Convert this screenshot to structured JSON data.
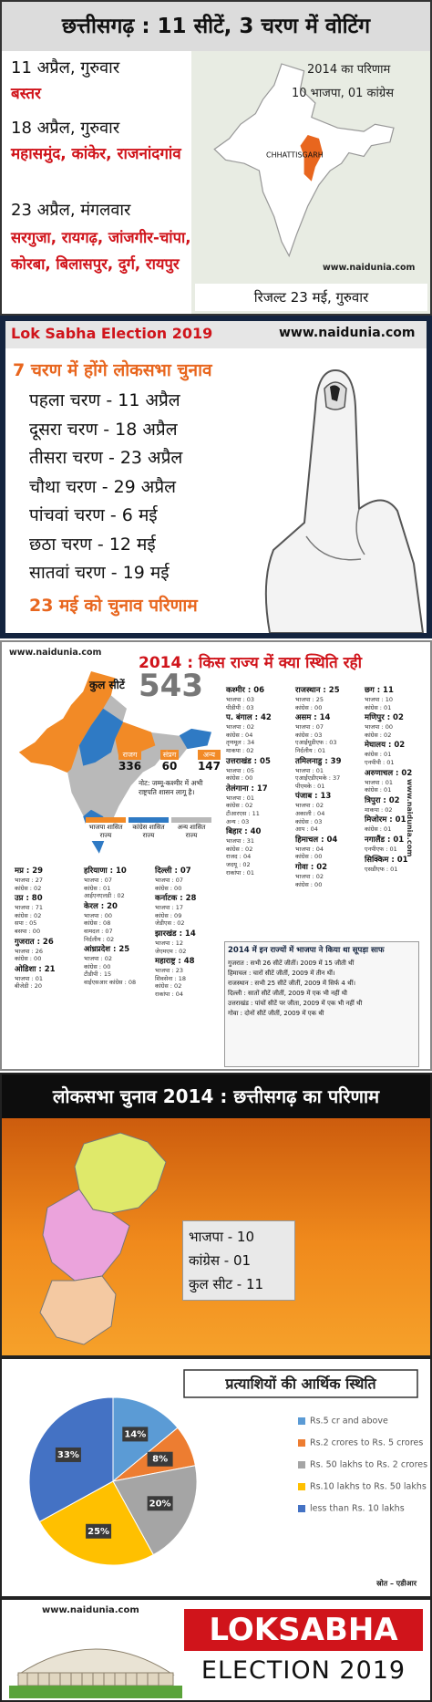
{
  "section1": {
    "title": "छत्तीसगढ़ : 11 सीटें, 3 चरण में वोटिंग",
    "phases": [
      {
        "date": "11 अप्रैल, गुरुवार",
        "seats": "बस्तर"
      },
      {
        "date": "18 अप्रैल, गुरुवार",
        "seats": "महासमुंद, कांकेर, राजनांदगांव"
      },
      {
        "date": "23 अप्रैल, मंगलवार",
        "seats": "सरगुजा, रायगढ़, जांजगीर-चांपा, कोरबा, बिलासपुर, दुर्ग, रायपुर"
      }
    ],
    "map_heading": "2014 का परिणाम",
    "map_result": "10 भाजपा, 01 कांग्रेस",
    "map_label": "CHHATTISGARH",
    "website": "www.naidunia.com",
    "result_date": "रिजल्ट 23 मई, गुरुवार"
  },
  "section2": {
    "title": "Lok Sabha Election 2019",
    "website": "www.naidunia.com",
    "heading": "7 चरण में होंगे लोकसभा चुनाव",
    "phases": [
      "पहला चरण - 11 अप्रैल",
      "दूसरा चरण - 18 अप्रैल",
      "तीसरा चरण - 23 अप्रैल",
      "चौथा चरण - 29 अप्रैल",
      "पांचवां चरण - 6 मई",
      "छठा चरण - 12 मई",
      "सातवां चरण - 19 मई"
    ],
    "result": "23 मई को चुनाव परिणाम"
  },
  "section3": {
    "website": "www.naidunia.com",
    "title": "2014 : किस राज्य में क्या स्थिति रही",
    "total_label": "कुल सीटें",
    "total": "543",
    "alliances": [
      {
        "name": "राजग",
        "seats": "336"
      },
      {
        "name": "संप्रग",
        "seats": "60"
      },
      {
        "name": "अन्य",
        "seats": "147"
      }
    ],
    "note": "नोट: जम्मू-कश्मीर में अभी राष्ट्रपति शासन लागू है।",
    "legend": [
      "भाजपा शासित राज्य",
      "कांग्रेस शासित राज्य",
      "अन्य शासित राज्य"
    ],
    "states_right": [
      [
        {
          "name": "कश्मीर : 06",
          "rows": [
            "भाजपा : 03",
            "पीडीपी : 03"
          ]
        },
        {
          "name": "प. बंगाल : 42",
          "rows": [
            "भाजपा : 02",
            "कांग्रेस : 04",
            "तृणमूल : 34",
            "माकपा : 02"
          ]
        },
        {
          "name": "उत्तराखंड : 05",
          "rows": [
            "भाजपा : 05",
            "कांग्रेस : 00"
          ]
        },
        {
          "name": "तेलंगाना : 17",
          "rows": [
            "भाजपा : 01",
            "कांग्रेस : 02",
            "टीआरएस : 11",
            "अन्य : 03"
          ]
        },
        {
          "name": "बिहार : 40",
          "rows": [
            "भाजपा : 31",
            "कांग्रेस : 02",
            "राजद : 04",
            "जदयू : 02",
            "राकांपा : 01"
          ]
        }
      ],
      [
        {
          "name": "राजस्थान : 25",
          "rows": [
            "भाजपा : 25",
            "कांग्रेस : 00"
          ]
        },
        {
          "name": "असम : 14",
          "rows": [
            "भाजपा : 07",
            "कांग्रेस : 03",
            "एआईयूडीएफ : 03",
            "निर्दलीय : 01"
          ]
        },
        {
          "name": "तमिलनाडु : 39",
          "rows": [
            "भाजपा : 01",
            "एआईएडीएमके : 37",
            "पीएमके : 01"
          ]
        },
        {
          "name": "पंजाब : 13",
          "rows": [
            "भाजपा : 02",
            "अकाली : 04",
            "कांग्रेस : 03",
            "आप : 04"
          ]
        },
        {
          "name": "हिमाचल : 04",
          "rows": [
            "भाजपा : 04",
            "कांग्रेस : 00"
          ]
        },
        {
          "name": "गोवा : 02",
          "rows": [
            "भाजपा : 02",
            "कांग्रेस : 00"
          ]
        }
      ],
      [
        {
          "name": "छग : 11",
          "rows": [
            "भाजपा : 10",
            "कांग्रेस : 01"
          ]
        },
        {
          "name": "मणिपुर : 02",
          "rows": [
            "भाजपा : 00",
            "कांग्रेस : 02"
          ]
        },
        {
          "name": "मेघालय : 02",
          "rows": [
            "कांग्रेस : 01",
            "एनपीपी : 01"
          ]
        },
        {
          "name": "अरुणाचल : 02",
          "rows": [
            "भाजपा : 01",
            "कांग्रेस : 01"
          ]
        },
        {
          "name": "त्रिपुरा : 02",
          "rows": [
            "माकपा : 02"
          ]
        },
        {
          "name": "मिजोरम : 01",
          "rows": [
            "कांग्रेस : 01"
          ]
        },
        {
          "name": "नगालैंड : 01",
          "rows": [
            "एनपीएफ : 01"
          ]
        },
        {
          "name": "सिक्किम : 01",
          "rows": [
            "एसडीएफ : 01"
          ]
        }
      ]
    ],
    "states_bottom": [
      [
        {
          "name": "मप्र : 29",
          "rows": [
            "भाजपा : 27",
            "कांग्रेस : 02"
          ]
        },
        {
          "name": "उप्र : 80",
          "rows": [
            "भाजपा : 71",
            "कांग्रेस : 02",
            "सपा : 05",
            "बसपा : 00"
          ]
        },
        {
          "name": "गुजरात : 26",
          "rows": [
            "भाजपा : 26",
            "कांग्रेस : 00"
          ]
        },
        {
          "name": "ओडिशा : 21",
          "rows": [
            "भाजपा : 01",
            "बीजेडी : 20"
          ]
        }
      ],
      [
        {
          "name": "हरियाणा : 10",
          "rows": [
            "भाजपा : 07",
            "कांग्रेस : 01",
            "आईएनएलडी : 02"
          ]
        },
        {
          "name": "केरल : 20",
          "rows": [
            "भाजपा : 00",
            "कांग्रेस : 08",
            "वामदल : 07",
            "निर्दलीय : 02"
          ]
        },
        {
          "name": "आंध्रप्रदेश : 25",
          "rows": [
            "भाजपा : 02",
            "कांग्रेस : 00",
            "टीडीपी : 15",
            "वाईएसआर कांग्रेस : 08"
          ]
        }
      ],
      [
        {
          "name": "दिल्ली : 07",
          "rows": [
            "भाजपा : 07",
            "कांग्रेस : 00"
          ]
        },
        {
          "name": "कर्नाटक : 28",
          "rows": [
            "भाजपा : 17",
            "कांग्रेस : 09",
            "जेडीएस : 02"
          ]
        },
        {
          "name": "झारखंड : 14",
          "rows": [
            "भाजपा : 12",
            "जेएमएम : 02"
          ]
        },
        {
          "name": "महाराष्ट्र : 48",
          "rows": [
            "भाजपा : 23",
            "शिवसेना : 18",
            "कांग्रेस : 02",
            "राकांपा : 04"
          ]
        }
      ]
    ],
    "box": {
      "title": "2014 में इन राज्यों में भाजपा ने किया था सूपड़ा साफ",
      "lines": [
        "गुजरात : सभी 26 सीटें जीतीं। 2009 में 15 जीती थीं",
        "हिमाचल : चारों सीटें जीतीं, 2009 में तीन थीं।",
        "राजस्थान : सभी 25 सीटें जीतीं, 2009 में सिर्फ 4 थीं।",
        "दिल्ली : सातों सीटें जीतीं, 2009 में एक भी नहीं थी",
        "उत्तराखंड : पांचों सीटें पर जीता, 2009 में एक भी नहीं थी",
        "गोवा : दोनों सीटें जीतीं, 2009 में एक थी"
      ]
    }
  },
  "section4": {
    "title": "लोकसभा चुनाव 2014 : छत्तीसगढ़ का परिणाम",
    "results": [
      "भाजपा - 10",
      "कांग्रेस - 01",
      "कुल सीट - 11"
    ]
  },
  "chart_data": {
    "type": "pie",
    "title": "प्रत्याशियों की आर्थिक स्थिति",
    "categories": [
      "Rs.5 cr and above",
      "Rs.2 crores to Rs. 5 crores",
      "Rs. 50 lakhs to Rs. 2 crores",
      "Rs.10 lakhs to Rs. 50 lakhs",
      "less than  Rs. 10 lakhs"
    ],
    "values": [
      14,
      8,
      20,
      25,
      33
    ],
    "value_labels": [
      "14%",
      "8%",
      "20%",
      "25%",
      "33%"
    ],
    "colors": [
      "#5b9bd5",
      "#ed7d31",
      "#a5a5a5",
      "#ffc000",
      "#4472c4"
    ],
    "legend": "right",
    "source": "स्रोत – एडीआर"
  },
  "footer": {
    "website": "www.naidunia.com",
    "title": "LOKSABHA",
    "subtitle": "ELECTION 2019"
  }
}
